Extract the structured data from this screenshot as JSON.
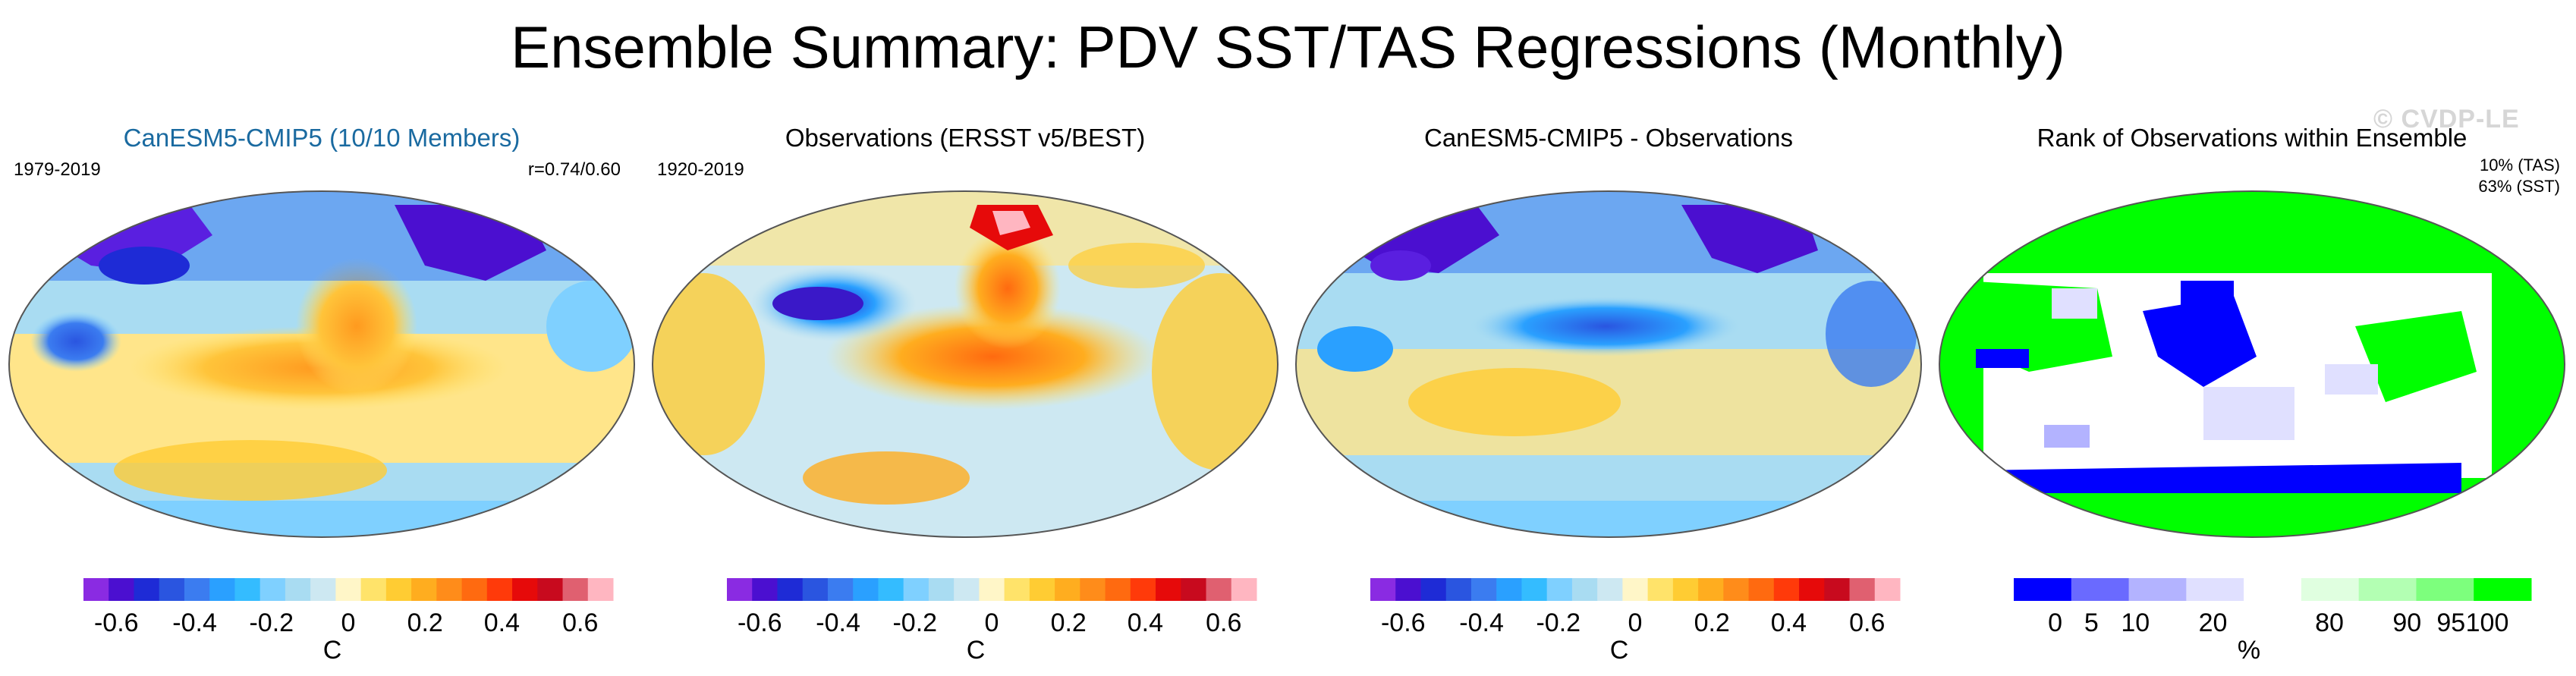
{
  "title": "Ensemble Summary: PDV SST/TAS Regressions (Monthly)",
  "watermark": "© CVDP-LE",
  "panels": [
    {
      "title": "CanESM5-CMIP5 (10/10 Members)",
      "period": "1979-2019",
      "corr": "r=0.74/0.60",
      "units": "C",
      "ticks": [
        "-0.6",
        "-0.4",
        "-0.2",
        "0",
        "0.2",
        "0.4",
        "0.6"
      ],
      "scale": "diverging"
    },
    {
      "title": "Observations (ERSST v5/BEST)",
      "period": "1920-2019",
      "units": "C",
      "ticks": [
        "-0.6",
        "-0.4",
        "-0.2",
        "0",
        "0.2",
        "0.4",
        "0.6"
      ],
      "scale": "diverging"
    },
    {
      "title": "CanESM5-CMIP5 - Observations",
      "units": "C",
      "ticks": [
        "-0.6",
        "-0.4",
        "-0.2",
        "0",
        "0.2",
        "0.4",
        "0.6"
      ],
      "scale": "diverging"
    },
    {
      "title": "Rank of Observations within Ensemble",
      "stat_tas": "10% (TAS)",
      "stat_sst": "63% (SST)",
      "units": "%",
      "ticks": [
        "0",
        "5",
        "10",
        "20",
        "80",
        "90",
        "95",
        "100"
      ],
      "scale": "rank"
    }
  ],
  "diverging_colors": [
    "#8a2be2",
    "#4b0fd0",
    "#1e2bd6",
    "#2a55e0",
    "#3b7cf0",
    "#2aa0ff",
    "#34bcff",
    "#7fd0ff",
    "#a9dcf2",
    "#cde8f2",
    "#fff6c8",
    "#ffe36a",
    "#ffcc33",
    "#ffad1f",
    "#ff8c1a",
    "#ff6a10",
    "#ff3a0a",
    "#e60a0a",
    "#c80a1e",
    "#e06070",
    "#ffb6c1"
  ],
  "rank_colors": [
    "#0000ff",
    "#6a6aff",
    "#b3b3ff",
    "#e0e0ff",
    "#ffffff",
    "#e0ffe0",
    "#b3ffb3",
    "#7dff7d",
    "#00ff00"
  ]
}
